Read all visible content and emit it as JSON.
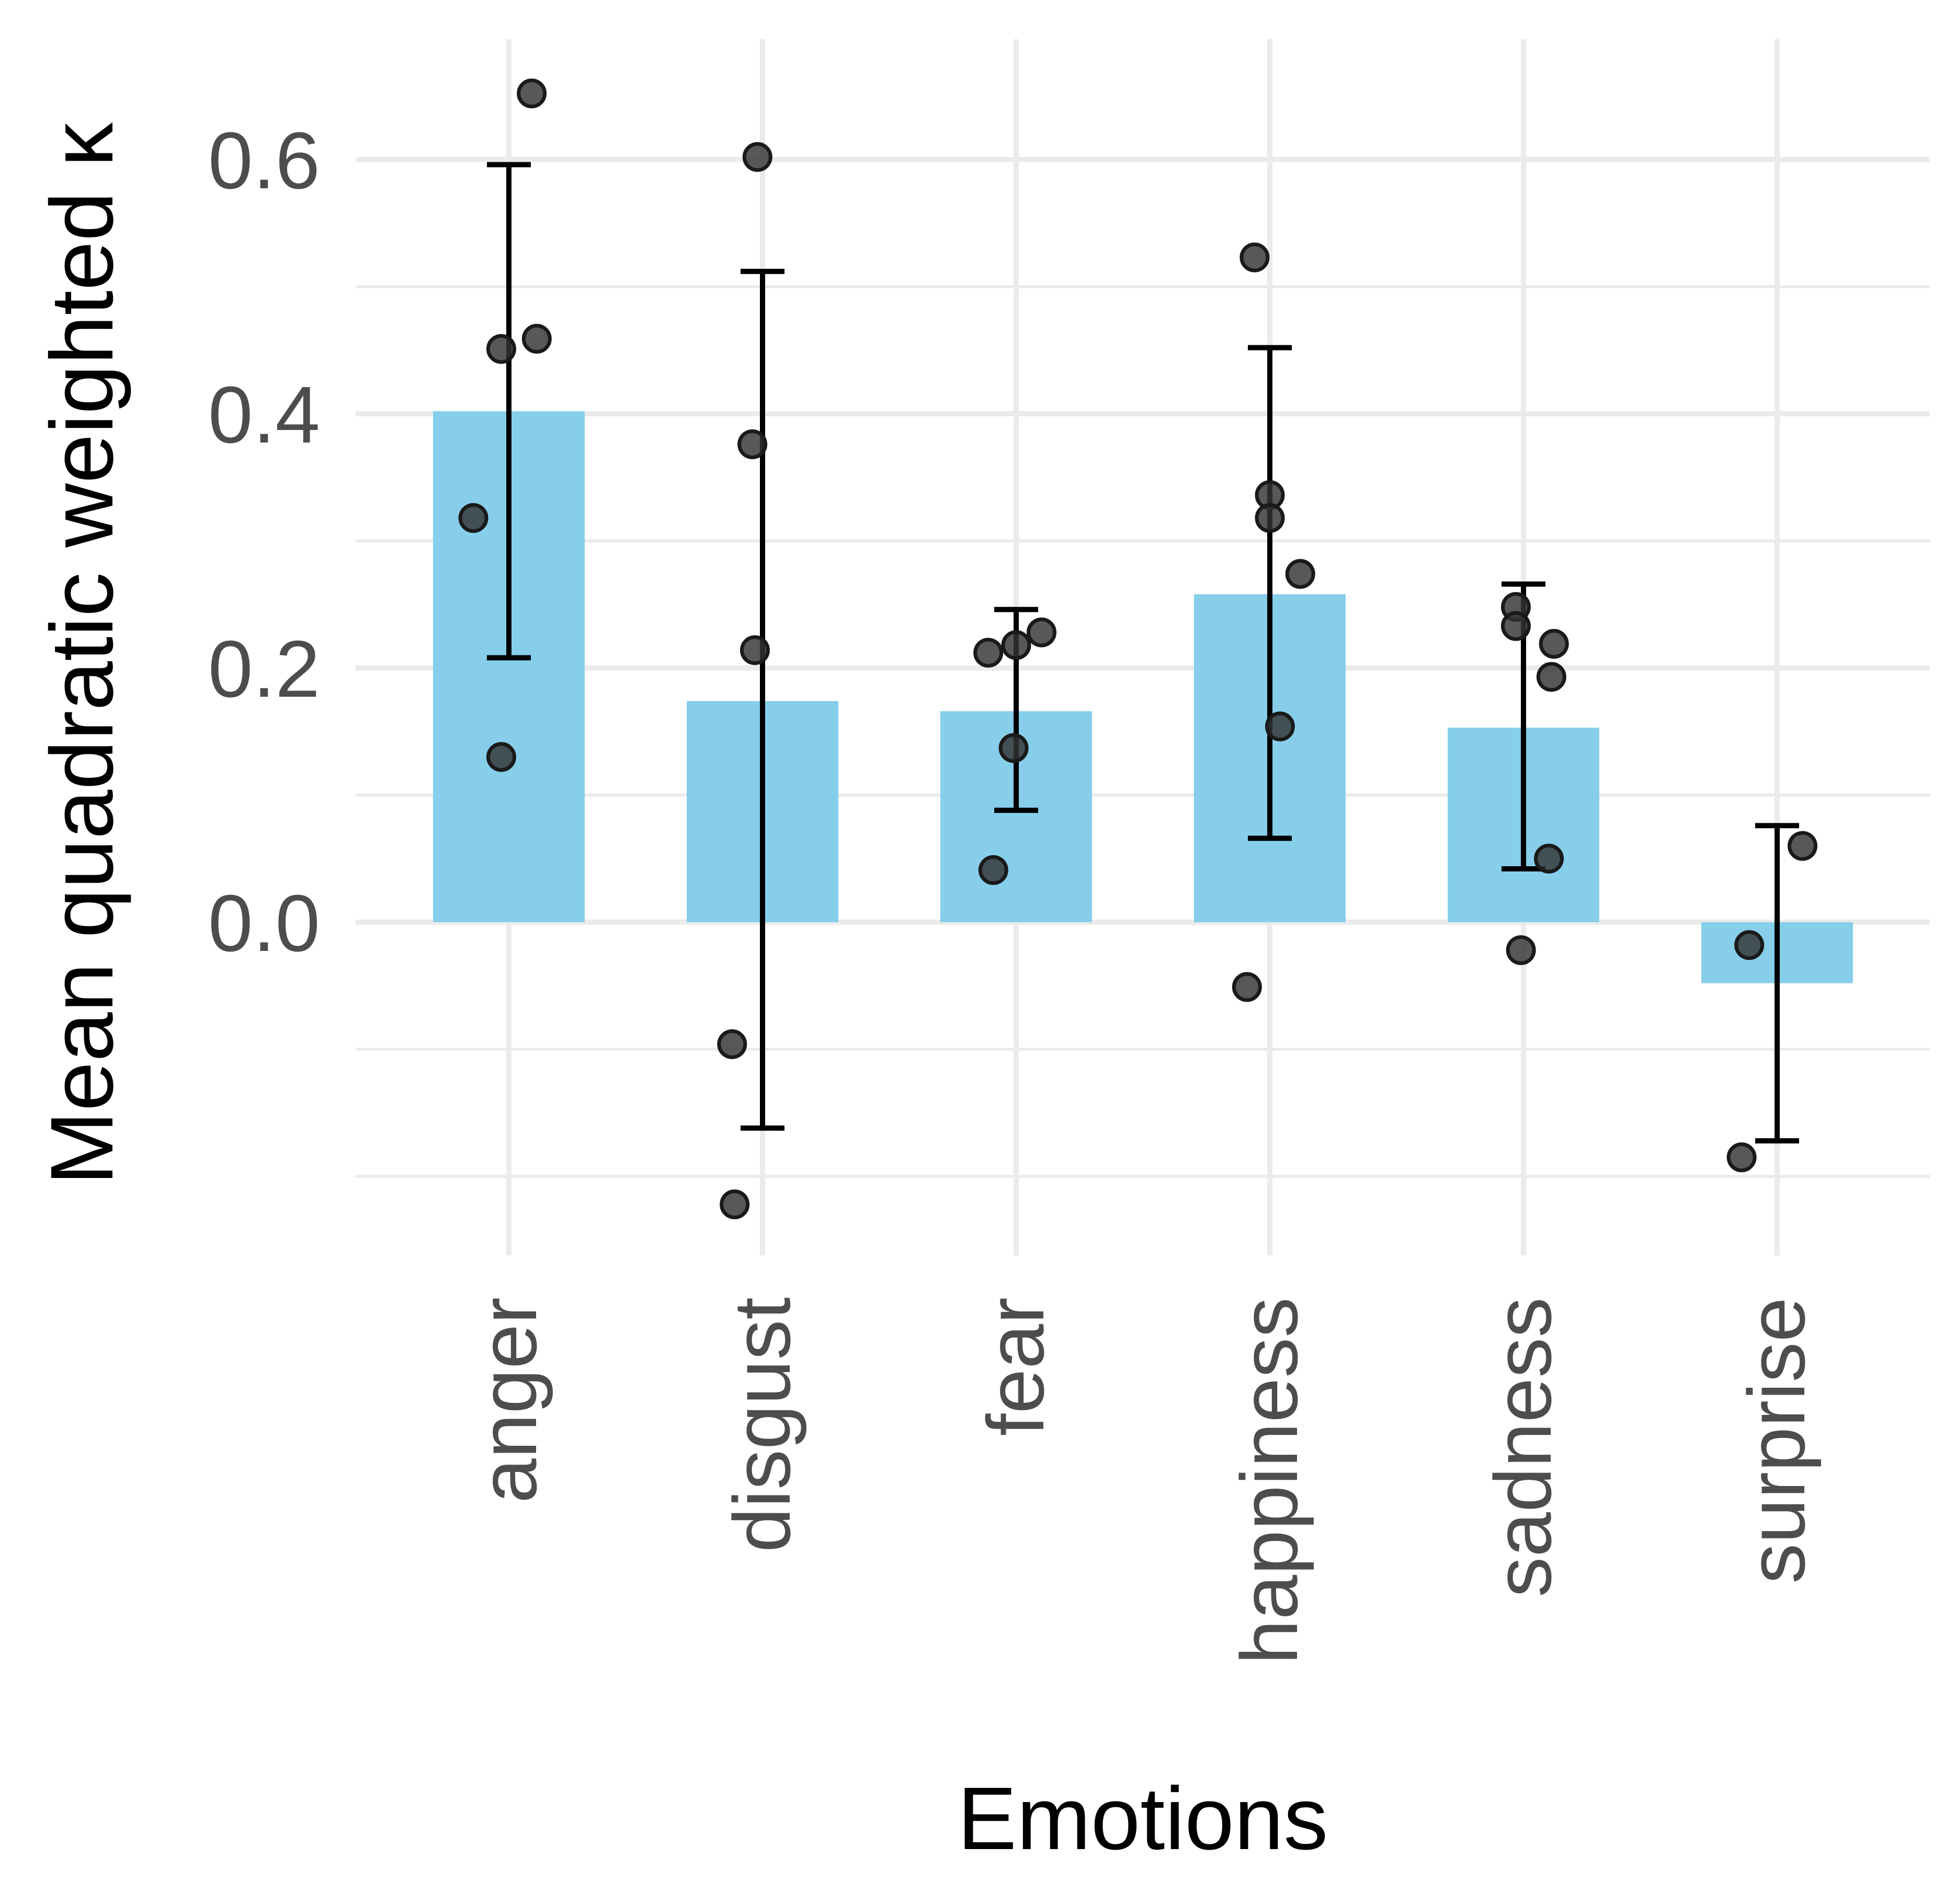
{
  "chart_data": {
    "type": "bar",
    "xlabel": "Emotions",
    "ylabel": "Mean quadratic weighted κ",
    "ylim": [
      -0.25,
      0.69
    ],
    "y_ticks": [
      0.0,
      0.2,
      0.4,
      0.6
    ],
    "y_tick_labels": [
      "0.0",
      "0.2",
      "0.4",
      "0.6"
    ],
    "y_minor_ticks": [
      -0.2,
      -0.1,
      0.1,
      0.3,
      0.5
    ],
    "grid": true,
    "bar_color": "#87ceeb",
    "point_color": "#333333",
    "error_bar_color": "#000000",
    "categories": [
      "anger",
      "disgust",
      "fear",
      "happiness",
      "sadness",
      "surprise"
    ],
    "values": [
      0.402,
      0.174,
      0.166,
      0.258,
      0.153,
      -0.048
    ],
    "error_bars": [
      {
        "low": 0.208,
        "high": 0.596
      },
      {
        "low": -0.162,
        "high": 0.512
      },
      {
        "low": 0.088,
        "high": 0.246
      },
      {
        "low": 0.066,
        "high": 0.452
      },
      {
        "low": 0.042,
        "high": 0.266
      },
      {
        "low": -0.172,
        "high": 0.076
      }
    ],
    "points": [
      {
        "category": "anger",
        "jitter": 0.09,
        "y": 0.652
      },
      {
        "category": "anger",
        "jitter": 0.11,
        "y": 0.459
      },
      {
        "category": "anger",
        "jitter": -0.03,
        "y": 0.451
      },
      {
        "category": "anger",
        "jitter": -0.14,
        "y": 0.318
      },
      {
        "category": "anger",
        "jitter": -0.03,
        "y": 0.13
      },
      {
        "category": "disgust",
        "jitter": -0.02,
        "y": 0.602
      },
      {
        "category": "disgust",
        "jitter": -0.04,
        "y": 0.376
      },
      {
        "category": "disgust",
        "jitter": -0.03,
        "y": 0.214
      },
      {
        "category": "disgust",
        "jitter": -0.12,
        "y": -0.096
      },
      {
        "category": "disgust",
        "jitter": -0.11,
        "y": -0.222
      },
      {
        "category": "fear",
        "jitter": 0.1,
        "y": 0.228
      },
      {
        "category": "fear",
        "jitter": 0.0,
        "y": 0.218
      },
      {
        "category": "fear",
        "jitter": -0.11,
        "y": 0.212
      },
      {
        "category": "fear",
        "jitter": -0.01,
        "y": 0.137
      },
      {
        "category": "fear",
        "jitter": -0.09,
        "y": 0.041
      },
      {
        "category": "happiness",
        "jitter": -0.06,
        "y": 0.523
      },
      {
        "category": "happiness",
        "jitter": 0.0,
        "y": 0.336
      },
      {
        "category": "happiness",
        "jitter": 0.0,
        "y": 0.318
      },
      {
        "category": "happiness",
        "jitter": 0.12,
        "y": 0.274
      },
      {
        "category": "happiness",
        "jitter": 0.04,
        "y": 0.154
      },
      {
        "category": "happiness",
        "jitter": -0.09,
        "y": -0.051
      },
      {
        "category": "sadness",
        "jitter": -0.03,
        "y": 0.248
      },
      {
        "category": "sadness",
        "jitter": -0.03,
        "y": 0.233
      },
      {
        "category": "sadness",
        "jitter": 0.12,
        "y": 0.219
      },
      {
        "category": "sadness",
        "jitter": 0.11,
        "y": 0.193
      },
      {
        "category": "sadness",
        "jitter": 0.1,
        "y": 0.05
      },
      {
        "category": "sadness",
        "jitter": -0.01,
        "y": -0.022
      },
      {
        "category": "surprise",
        "jitter": 0.1,
        "y": 0.06
      },
      {
        "category": "surprise",
        "jitter": -0.11,
        "y": -0.018
      },
      {
        "category": "surprise",
        "jitter": -0.14,
        "y": -0.185
      }
    ]
  }
}
